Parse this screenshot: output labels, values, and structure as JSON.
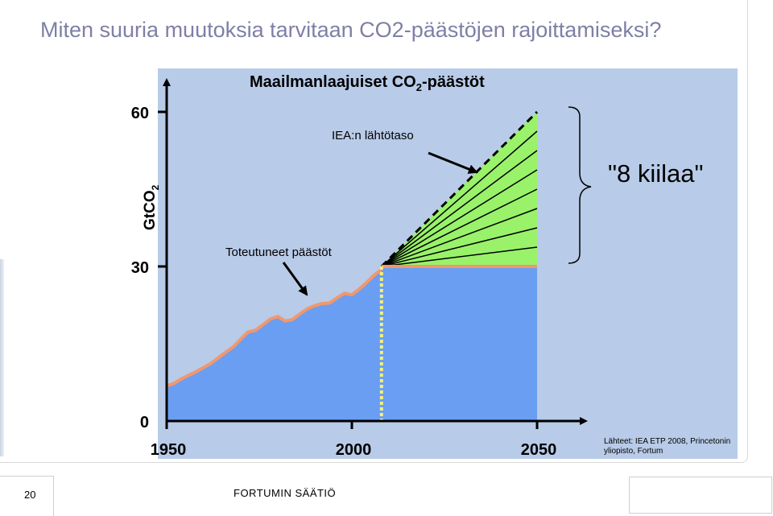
{
  "slide": {
    "title": "Miten suuria muutoksia tarvitaan CO2-päästöjen rajoittamiseksi?",
    "page_number": "20",
    "footer_brand": "FORTUMIN SÄÄTIÖ",
    "sources_line1": "Lähteet: IEA ETP 2008, Princetonin",
    "sources_line2": "yliopisto, Fortum"
  },
  "colors": {
    "plot_background": "#b8cbe8",
    "historical_fill": "#6a9ef2",
    "historical_line": "#f2976c",
    "wedge_fill": "#99f26a",
    "baseline_dash": "#000000",
    "divider": "#f5f07a",
    "title_text": "#7f7fa6"
  },
  "chart_data": {
    "type": "area",
    "title": "Maailmanlaajuiset CO",
    "title_subscript": "2",
    "title_suffix": "-päästöt",
    "ylabel": "GtCO",
    "ylabel_subscript": "2",
    "ylim": [
      0,
      60
    ],
    "xlim": [
      1950,
      2055
    ],
    "x_ticks": [
      1950,
      2000,
      2050
    ],
    "y_ticks": [
      0,
      30,
      60
    ],
    "historical": {
      "label": "Toteutuneet päästöt",
      "x": [
        1950,
        1952,
        1954,
        1956,
        1958,
        1960,
        1962,
        1964,
        1966,
        1968,
        1970,
        1972,
        1974,
        1976,
        1978,
        1980,
        1982,
        1984,
        1986,
        1988,
        1990,
        1992,
        1994,
        1996,
        1998,
        2000,
        2002,
        2004,
        2006,
        2008
      ],
      "y": [
        6.8,
        7.3,
        8.2,
        8.9,
        9.6,
        10.4,
        11.2,
        12.3,
        13.4,
        14.4,
        15.9,
        17.3,
        17.6,
        18.7,
        19.8,
        20.3,
        19.4,
        19.7,
        20.8,
        21.8,
        22.4,
        22.8,
        22.9,
        23.9,
        24.8,
        24.5,
        25.6,
        26.9,
        28.3,
        29.4
      ]
    },
    "projection": {
      "start_x": 2008,
      "end_x": 2050,
      "flat_level": 30,
      "baseline_label": "IEA:n lähtötaso",
      "baseline_end": 60,
      "wedge_levels": [
        30,
        33.75,
        37.5,
        41.25,
        45,
        48.75,
        52.5,
        56.25,
        60
      ],
      "wedges_label": "\"8 kiilaa\""
    }
  }
}
